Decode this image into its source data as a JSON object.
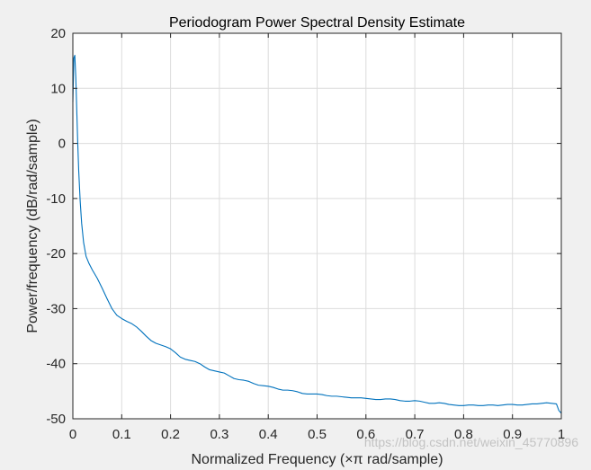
{
  "figure": {
    "background": "#f0f0f0",
    "watermark": "https://blog.csdn.net/weixin_45770896"
  },
  "chart_data": {
    "type": "line",
    "title": "Periodogram Power Spectral Density Estimate",
    "xlabel": "Normalized Frequency  (×π rad/sample)",
    "ylabel": "Power/frequency (dB/rad/sample)",
    "xlim": [
      0,
      1
    ],
    "ylim": [
      -50,
      20
    ],
    "xticks": [
      0,
      0.1,
      0.2,
      0.3,
      0.4,
      0.5,
      0.6,
      0.7,
      0.8,
      0.9,
      1
    ],
    "xtick_labels": [
      "0",
      "0.1",
      "0.2",
      "0.3",
      "0.4",
      "0.5",
      "0.6",
      "0.7",
      "0.8",
      "0.9",
      "1"
    ],
    "yticks": [
      20,
      10,
      0,
      -10,
      -20,
      -30,
      -40,
      -50
    ],
    "ytick_labels": [
      "20",
      "10",
      "0",
      "-10",
      "-20",
      "-30",
      "-40",
      "-50"
    ],
    "grid": true,
    "axes_background": "#ffffff",
    "grid_color": "#dcdcdc",
    "axis_color": "#262626",
    "series": [
      {
        "color": "#0072bd",
        "x": [
          0,
          0.002,
          0.004,
          0.006,
          0.008,
          0.01,
          0.012,
          0.015,
          0.018,
          0.022,
          0.027,
          0.033,
          0.04,
          0.05,
          0.06,
          0.07,
          0.08,
          0.09,
          0.1,
          0.11,
          0.12,
          0.13,
          0.14,
          0.15,
          0.16,
          0.17,
          0.18,
          0.19,
          0.2,
          0.21,
          0.22,
          0.23,
          0.24,
          0.25,
          0.26,
          0.27,
          0.28,
          0.29,
          0.3,
          0.31,
          0.32,
          0.33,
          0.34,
          0.35,
          0.36,
          0.37,
          0.38,
          0.39,
          0.4,
          0.41,
          0.42,
          0.43,
          0.44,
          0.45,
          0.46,
          0.47,
          0.48,
          0.49,
          0.5,
          0.51,
          0.52,
          0.53,
          0.54,
          0.55,
          0.56,
          0.57,
          0.58,
          0.59,
          0.6,
          0.61,
          0.62,
          0.63,
          0.64,
          0.65,
          0.66,
          0.67,
          0.68,
          0.69,
          0.7,
          0.71,
          0.72,
          0.73,
          0.74,
          0.75,
          0.76,
          0.77,
          0.78,
          0.79,
          0.8,
          0.81,
          0.82,
          0.83,
          0.84,
          0.85,
          0.86,
          0.87,
          0.88,
          0.89,
          0.9,
          0.91,
          0.92,
          0.93,
          0.94,
          0.95,
          0.96,
          0.97,
          0.98,
          0.99,
          0.995,
          1
        ],
        "y": [
          7.5,
          15.5,
          16,
          12,
          6,
          0,
          -5,
          -10.5,
          -14.5,
          -18,
          -20.5,
          -21.8,
          -23,
          -24.5,
          -26.3,
          -28.2,
          -30,
          -31.2,
          -31.8,
          -32.3,
          -32.7,
          -33.3,
          -34.1,
          -35,
          -35.8,
          -36.3,
          -36.6,
          -36.9,
          -37.3,
          -38,
          -38.8,
          -39.2,
          -39.4,
          -39.6,
          -40,
          -40.6,
          -41.1,
          -41.3,
          -41.5,
          -41.7,
          -42.2,
          -42.7,
          -42.9,
          -43,
          -43.2,
          -43.6,
          -43.9,
          -44,
          -44.1,
          -44.3,
          -44.6,
          -44.8,
          -44.8,
          -44.9,
          -45.1,
          -45.4,
          -45.5,
          -45.5,
          -45.5,
          -45.6,
          -45.8,
          -45.9,
          -45.9,
          -46,
          -46.1,
          -46.2,
          -46.2,
          -46.2,
          -46.3,
          -46.4,
          -46.5,
          -46.5,
          -46.4,
          -46.4,
          -46.5,
          -46.7,
          -46.8,
          -46.8,
          -46.7,
          -46.8,
          -47,
          -47.2,
          -47.2,
          -47.1,
          -47.2,
          -47.4,
          -47.5,
          -47.6,
          -47.6,
          -47.5,
          -47.5,
          -47.6,
          -47.6,
          -47.5,
          -47.5,
          -47.6,
          -47.5,
          -47.4,
          -47.4,
          -47.5,
          -47.5,
          -47.4,
          -47.3,
          -47.3,
          -47.2,
          -47.1,
          -47.2,
          -47.3,
          -48.5,
          -49
        ]
      }
    ]
  }
}
